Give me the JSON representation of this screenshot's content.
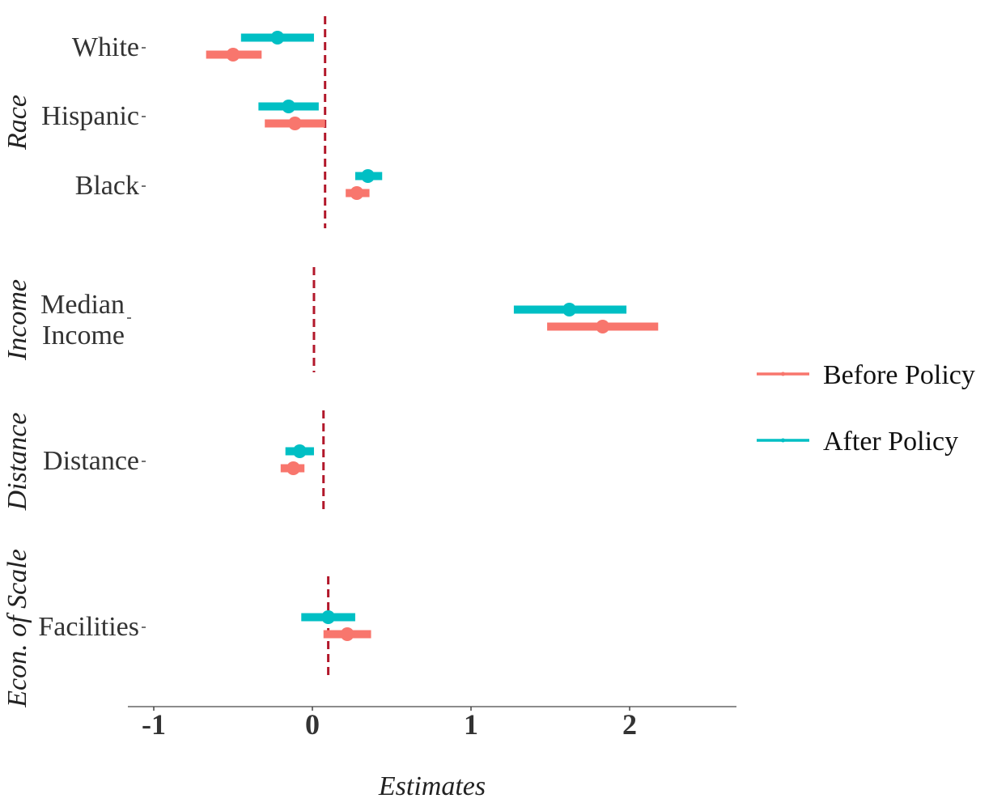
{
  "chart_data": {
    "type": "coefficient-plot",
    "title": "",
    "xlabel": "Estimates",
    "ylabel": "",
    "xlim": [
      -1.15,
      2.65
    ],
    "x_ticks": [
      -1,
      0,
      1,
      2
    ],
    "x_tick_labels": [
      "-1",
      "0",
      "1",
      "2"
    ],
    "grid": false,
    "legend_position": "right",
    "colors": {
      "before": "#F8766D",
      "after": "#00BFC4",
      "reference": "#B2182B"
    },
    "series": [
      {
        "key": "before",
        "name": "Before Policy"
      },
      {
        "key": "after",
        "name": "After Policy"
      }
    ],
    "panels": [
      {
        "facet": "Race",
        "reference_x": 0.08,
        "rows": [
          {
            "label": "White",
            "before": {
              "est": -0.5,
              "low": -0.67,
              "high": -0.32
            },
            "after": {
              "est": -0.22,
              "low": -0.45,
              "high": 0.01
            }
          },
          {
            "label": "Hispanic",
            "before": {
              "est": -0.11,
              "low": -0.3,
              "high": 0.08
            },
            "after": {
              "est": -0.15,
              "low": -0.34,
              "high": 0.04
            }
          },
          {
            "label": "Black",
            "before": {
              "est": 0.28,
              "low": 0.21,
              "high": 0.36
            },
            "after": {
              "est": 0.35,
              "low": 0.27,
              "high": 0.44
            }
          }
        ]
      },
      {
        "facet": "Income",
        "reference_x": 0.01,
        "rows": [
          {
            "label": "Median Income",
            "label_lines": [
              "Median",
              "Income"
            ],
            "before": {
              "est": 1.83,
              "low": 1.48,
              "high": 2.18
            },
            "after": {
              "est": 1.62,
              "low": 1.27,
              "high": 1.98
            }
          }
        ]
      },
      {
        "facet": "Distance",
        "reference_x": 0.07,
        "rows": [
          {
            "label": "Distance",
            "before": {
              "est": -0.12,
              "low": -0.2,
              "high": -0.05
            },
            "after": {
              "est": -0.08,
              "low": -0.17,
              "high": 0.01
            }
          }
        ]
      },
      {
        "facet": "Econ. of Scale",
        "reference_x": 0.1,
        "rows": [
          {
            "label": "Facilities",
            "before": {
              "est": 0.22,
              "low": 0.07,
              "high": 0.37
            },
            "after": {
              "est": 0.1,
              "low": -0.07,
              "high": 0.27
            }
          }
        ]
      }
    ]
  }
}
